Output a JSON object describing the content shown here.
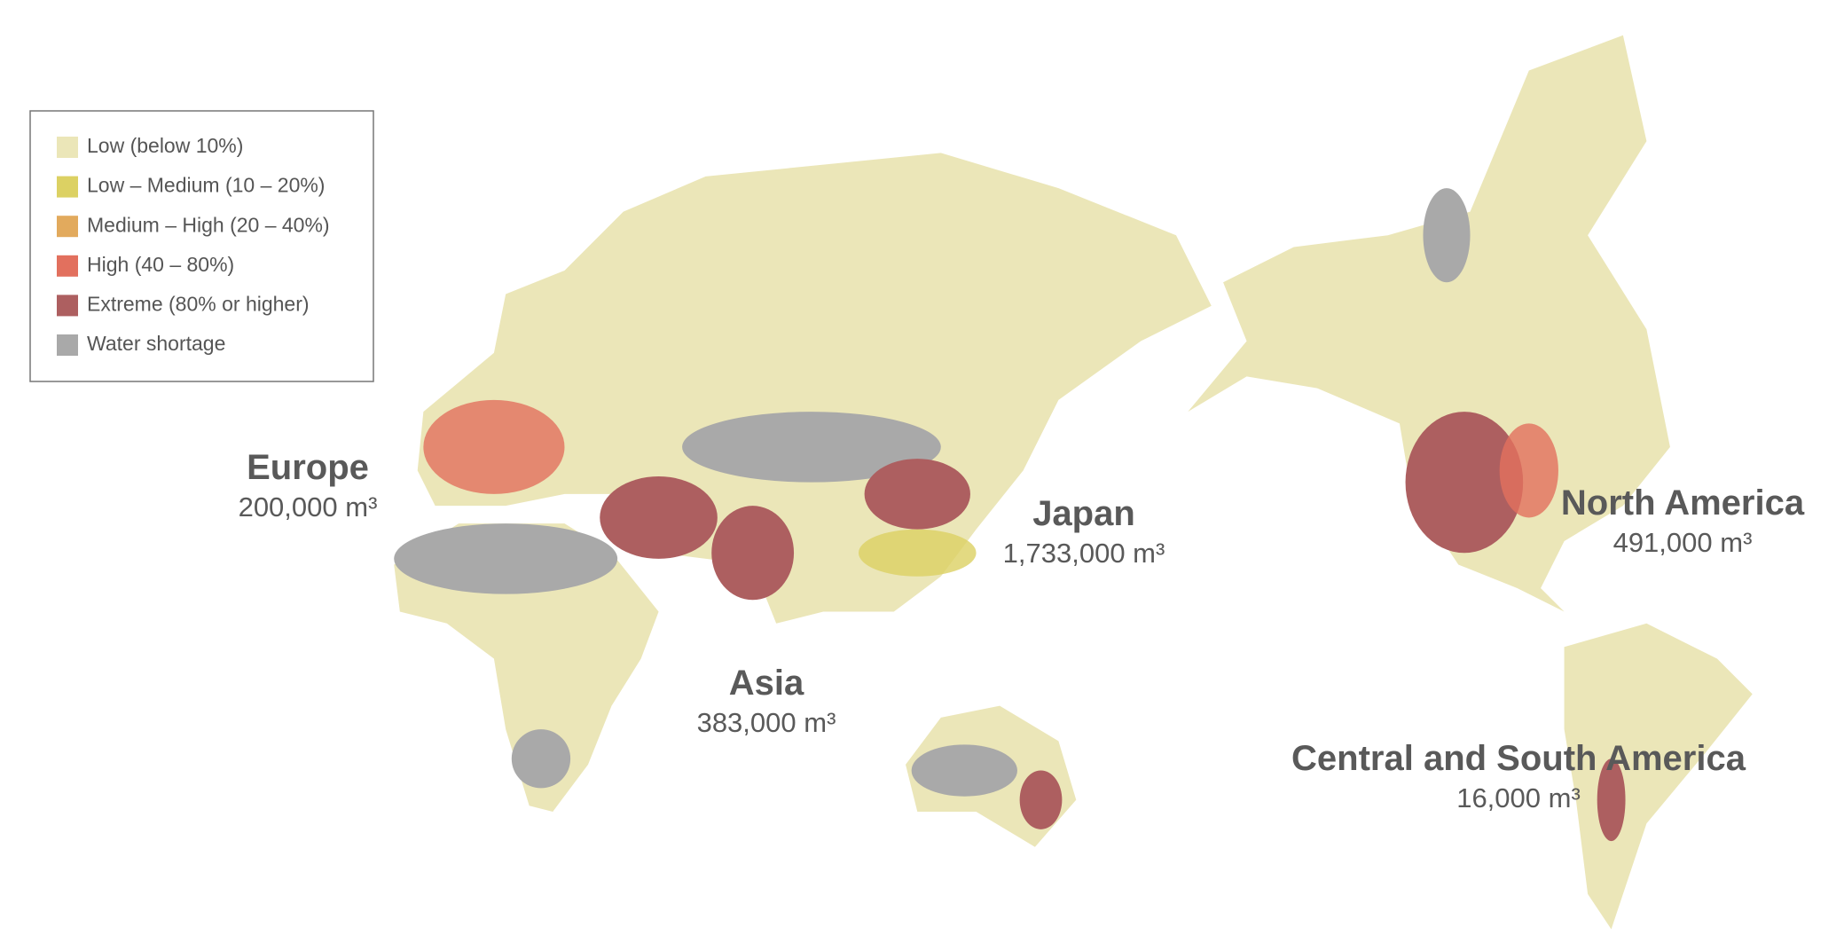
{
  "legend": {
    "items": [
      {
        "label": "Low (below 10%)",
        "color": "#ebe6b8"
      },
      {
        "label": "Low – Medium (10 – 20%)",
        "color": "#dcd163"
      },
      {
        "label": "Medium – High (20 – 40%)",
        "color": "#e2aa5d"
      },
      {
        "label": "High (40 – 80%)",
        "color": "#e2705e"
      },
      {
        "label": "Extreme (80% or higher)",
        "color": "#ad5f60"
      },
      {
        "label": "Water shortage",
        "color": "#a9a9a9"
      }
    ]
  },
  "regions": [
    {
      "name": "Europe",
      "value": "200,000 m³"
    },
    {
      "name": "Asia",
      "value": "383,000 m³"
    },
    {
      "name": "Japan",
      "value": "1,733,000 m³"
    },
    {
      "name": "North America",
      "value": "491,000 m³"
    },
    {
      "name": "Central and South America",
      "value": "16,000 m³"
    }
  ]
}
